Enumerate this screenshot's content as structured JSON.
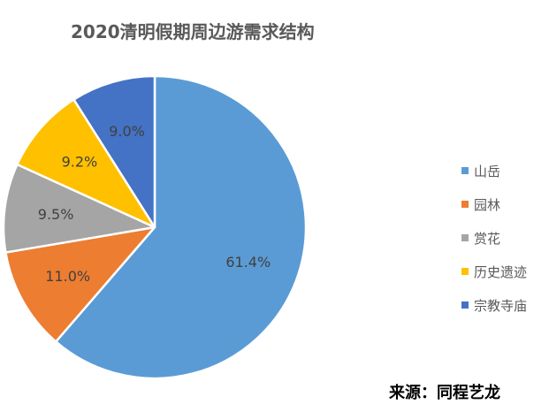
{
  "title": "2020清明假期周边游需求结构",
  "source": "来源：同程艺龙",
  "chart_data": {
    "type": "pie",
    "title": "2020清明假期周边游需求结构",
    "unit": "%",
    "legend_position": "right",
    "slices": [
      {
        "label": "山岳",
        "value": 61.4,
        "display": "61.4%",
        "color": "#5B9BD5"
      },
      {
        "label": "园林",
        "value": 11.0,
        "display": "11.0%",
        "color": "#ED7D31"
      },
      {
        "label": "赏花",
        "value": 9.5,
        "display": "9.5%",
        "color": "#A5A5A5"
      },
      {
        "label": "历史遗迹",
        "value": 9.2,
        "display": "9.2%",
        "color": "#FFC000"
      },
      {
        "label": "宗教寺庙",
        "value": 9.0,
        "display": "9.0%",
        "color": "#4472C4"
      }
    ]
  }
}
